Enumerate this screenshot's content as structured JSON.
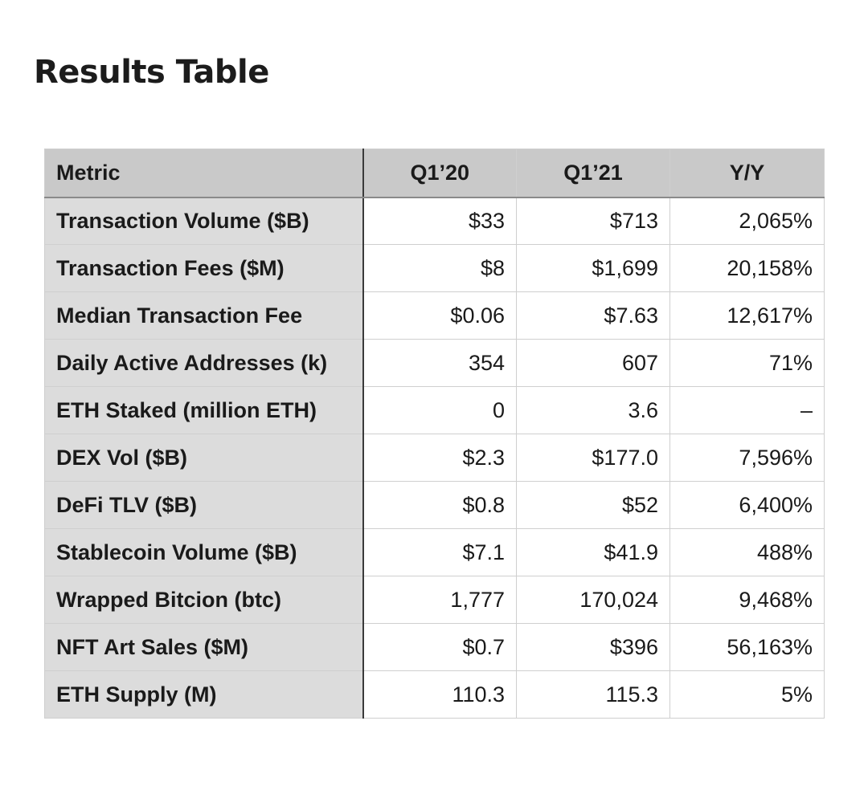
{
  "page": {
    "title": "Results Table"
  },
  "table": {
    "headers": [
      "Metric",
      "Q1’20",
      "Q1’21",
      "Y/Y"
    ],
    "rows": [
      {
        "metric": "Transaction Volume ($B)",
        "q1_20": "$33",
        "q1_21": "$713",
        "yoy": "2,065%"
      },
      {
        "metric": "Transaction Fees ($M)",
        "q1_20": "$8",
        "q1_21": "$1,699",
        "yoy": "20,158%"
      },
      {
        "metric": "Median Transaction Fee",
        "q1_20": "$0.06",
        "q1_21": "$7.63",
        "yoy": "12,617%"
      },
      {
        "metric": "Daily Active Addresses (k)",
        "q1_20": "354",
        "q1_21": "607",
        "yoy": "71%"
      },
      {
        "metric": "ETH Staked (million ETH)",
        "q1_20": "0",
        "q1_21": "3.6",
        "yoy": "–"
      },
      {
        "metric": "DEX Vol ($B)",
        "q1_20": "$2.3",
        "q1_21": "$177.0",
        "yoy": "7,596%"
      },
      {
        "metric": "DeFi TLV ($B)",
        "q1_20": "$0.8",
        "q1_21": "$52",
        "yoy": "6,400%"
      },
      {
        "metric": "Stablecoin Volume ($B)",
        "q1_20": "$7.1",
        "q1_21": "$41.9",
        "yoy": "488%"
      },
      {
        "metric": "Wrapped Bitcion (btc)",
        "q1_20": "1,777",
        "q1_21": "170,024",
        "yoy": "9,468%"
      },
      {
        "metric": "NFT Art Sales ($M)",
        "q1_20": "$0.7",
        "q1_21": "$396",
        "yoy": "56,163%"
      },
      {
        "metric": "ETH Supply (M)",
        "q1_20": "110.3",
        "q1_21": "115.3",
        "yoy": "5%"
      }
    ]
  },
  "colors": {
    "header_bg": "#c9c9c9",
    "metric_bg": "#dcdcdc",
    "cell_bg": "#ffffff",
    "grid": "#cfcfcf",
    "text": "#1a1a1a"
  }
}
